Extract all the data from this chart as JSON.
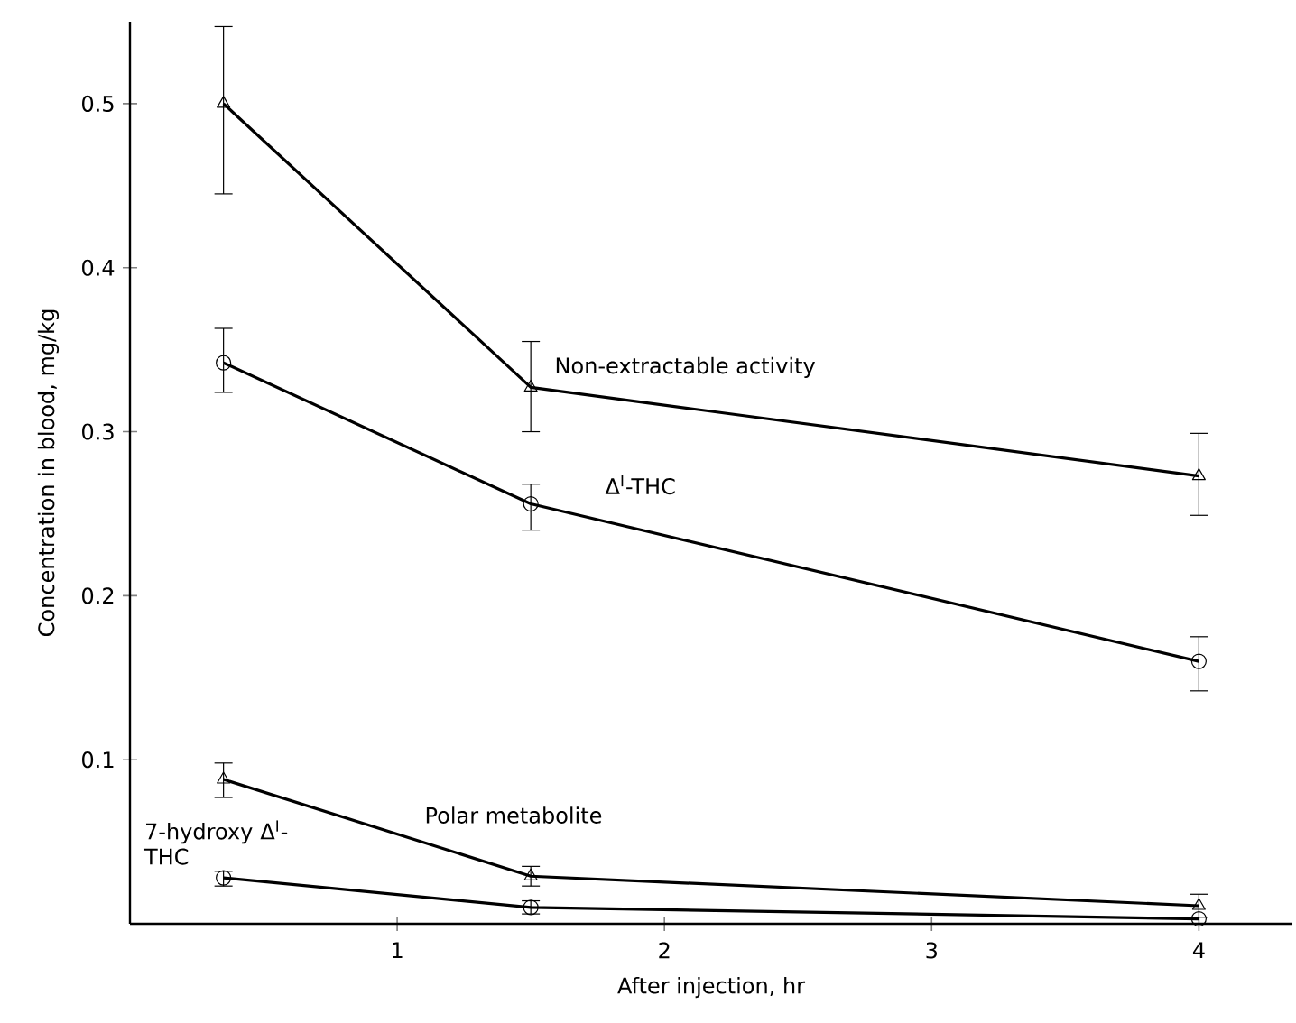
{
  "chart_data": {
    "type": "line",
    "xlabel": "After injection, hr",
    "ylabel": "Concentration in blood, mg/kg",
    "xlim": [
      0,
      4.35
    ],
    "ylim": [
      0,
      0.55
    ],
    "xticks": [
      1,
      2,
      3,
      4
    ],
    "yticks": [
      0.1,
      0.2,
      0.3,
      0.4,
      0.5
    ],
    "grid": false,
    "legend": false,
    "line_style": "solid",
    "series": [
      {
        "name": "Non-extractable activity",
        "color": "#000000",
        "marker": "triangle",
        "x": [
          0.35,
          1.5,
          4
        ],
        "values": [
          0.5,
          0.327,
          0.273
        ],
        "errors": [
          [
            0.445,
            0.547
          ],
          [
            0.3,
            0.355
          ],
          [
            0.249,
            0.299
          ]
        ]
      },
      {
        "name": "Δ$^{I}$-THC",
        "color": "#000000",
        "marker": "circle",
        "x": [
          0.35,
          1.5,
          4
        ],
        "values": [
          0.342,
          0.256,
          0.16
        ],
        "errors": [
          [
            0.324,
            0.363
          ],
          [
            0.24,
            0.268
          ],
          [
            0.142,
            0.175
          ]
        ]
      },
      {
        "name": "Polar metabolite",
        "color": "#000000",
        "marker": "triangle",
        "x": [
          0.35,
          1.5,
          4
        ],
        "values": [
          0.088,
          0.029,
          0.011
        ],
        "errors": [
          [
            0.077,
            0.098
          ],
          [
            0.023,
            0.035
          ],
          [
            0.004,
            0.018
          ]
        ]
      },
      {
        "name": "7-hydroxy Δ$^{I}$-THC",
        "color": "#000000",
        "marker": "circle",
        "x": [
          0.35,
          1.5,
          4
        ],
        "values": [
          0.028,
          0.01,
          0.003
        ],
        "errors": [
          [
            0.023,
            0.032
          ],
          [
            0.006,
            0.014
          ],
          null
        ]
      }
    ]
  }
}
